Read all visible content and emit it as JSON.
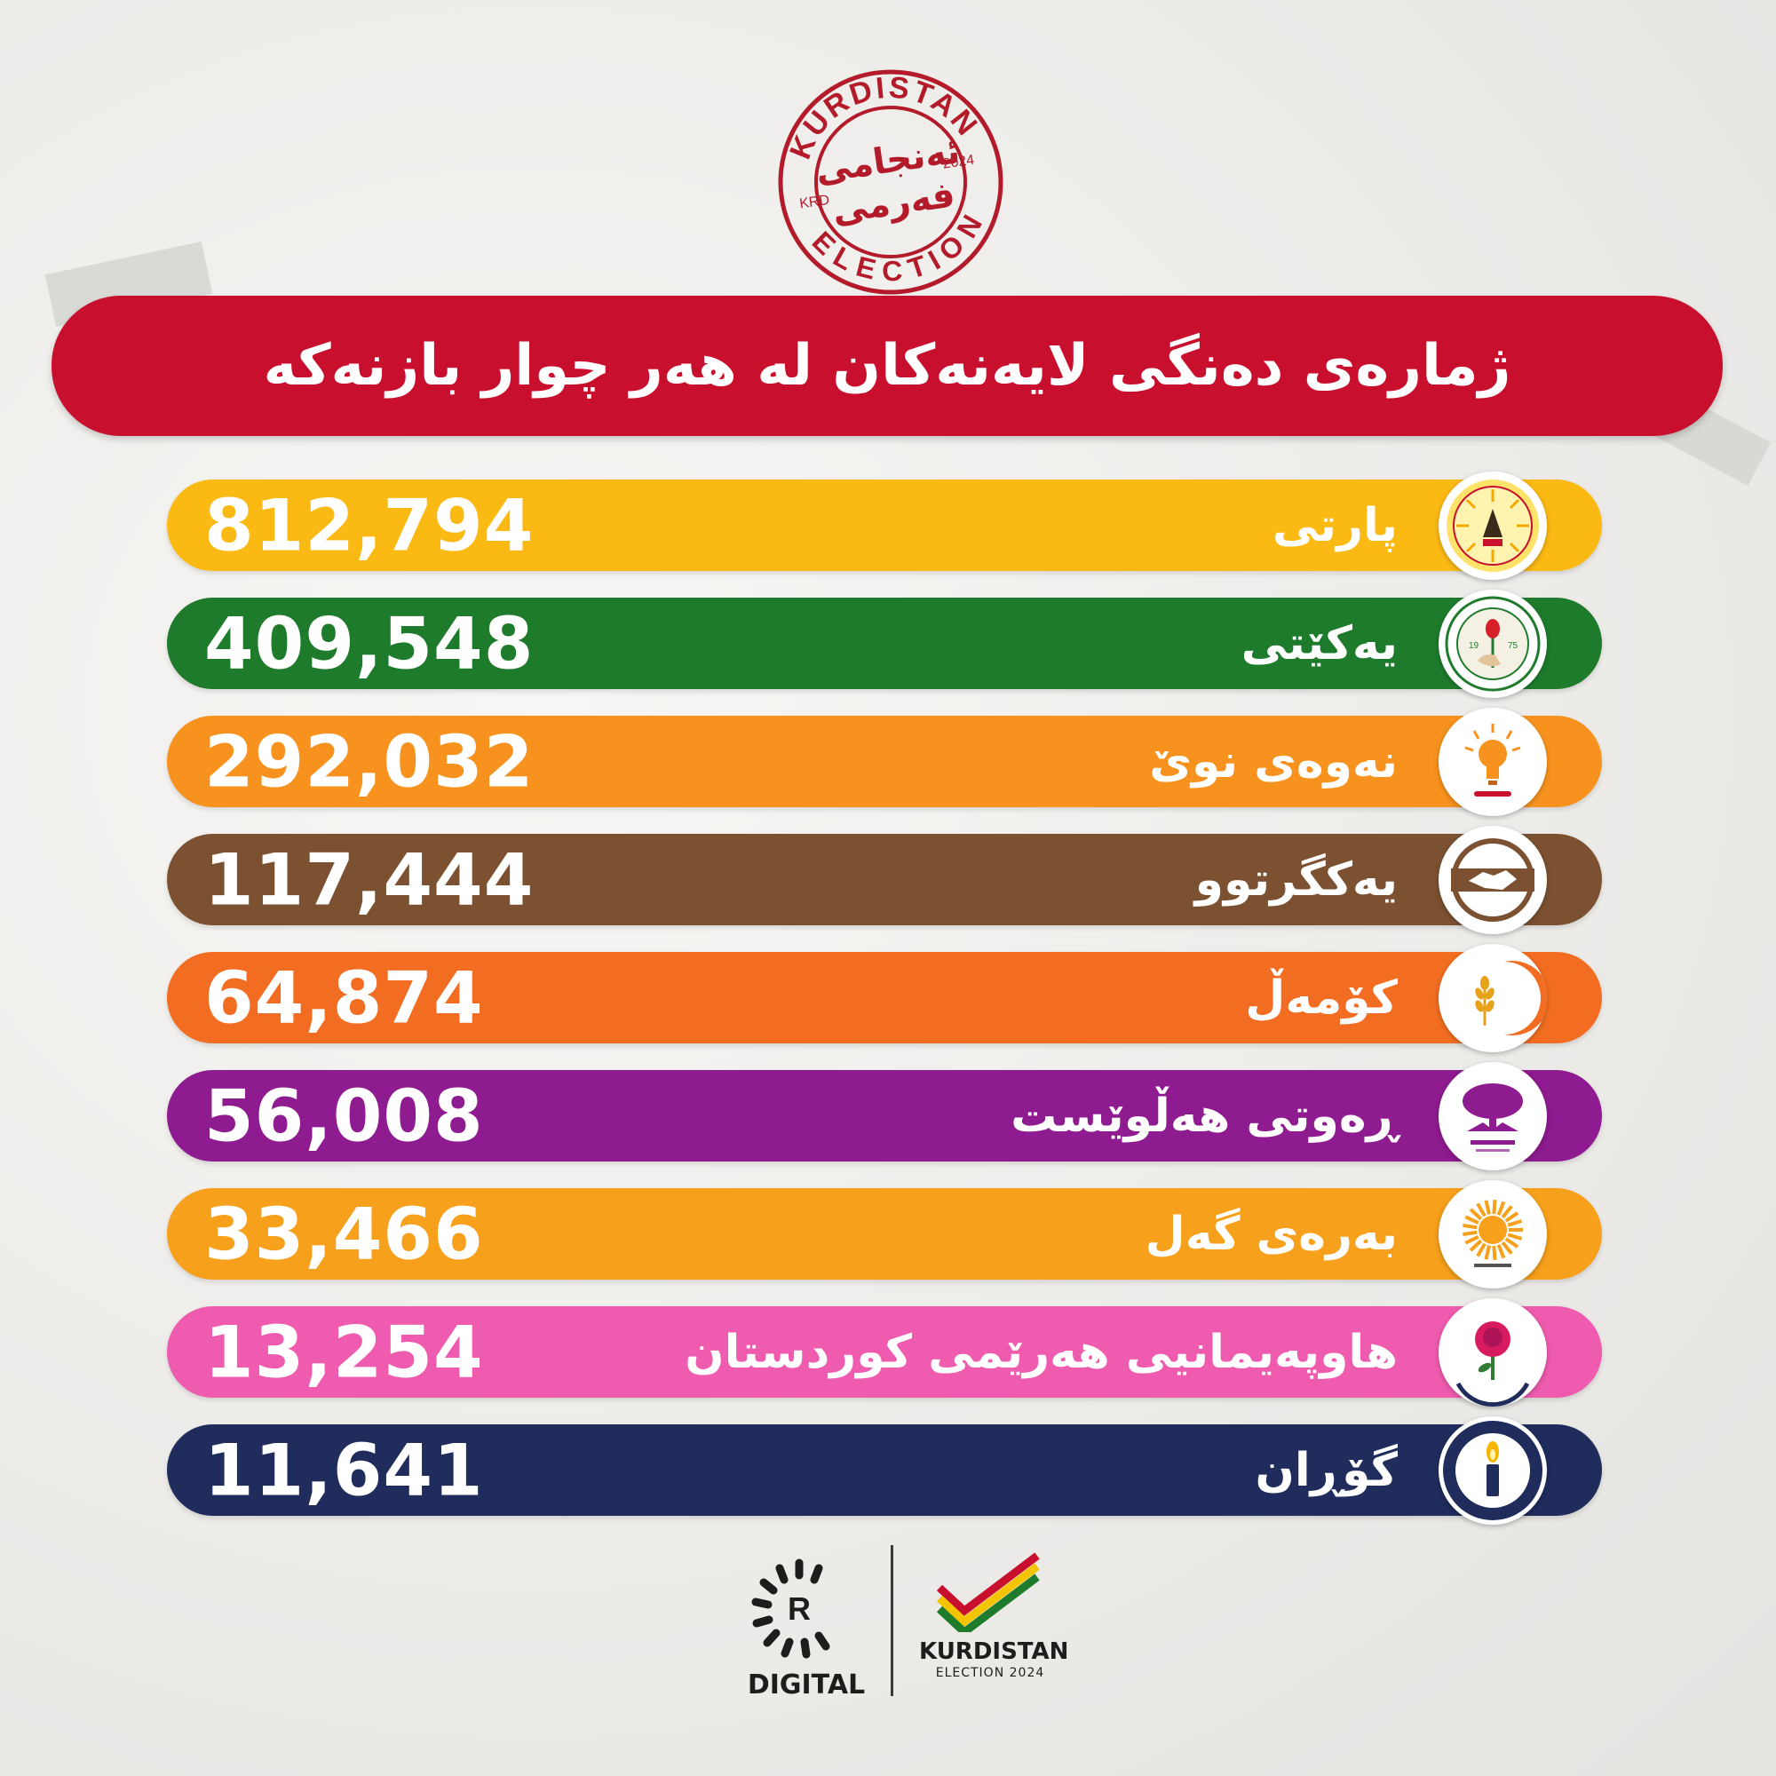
{
  "stamp": {
    "top_text": "KURDISTAN",
    "bottom_text": "ELECTION",
    "left_text": "KRD",
    "right_text": "2024",
    "center_line1": "ئەنجامی",
    "center_line2": "فەرمی",
    "color": "#b31b2a"
  },
  "banner": {
    "title": "ژمارەی دەنگی لایەنەکان لە هەر چوار بازنەکە",
    "color": "#c8102e"
  },
  "parties": [
    {
      "name": "پارتی",
      "votes": "812,794",
      "color": "#fbb914",
      "icon": "kdp-eagle-sun-icon"
    },
    {
      "name": "یەکێتی",
      "votes": "409,548",
      "color": "#1e7b2c",
      "icon": "puk-rose-hand-icon"
    },
    {
      "name": "نەوەی نوێ",
      "votes": "292,032",
      "color": "#f7921e",
      "icon": "new-generation-lightbulb-icon"
    },
    {
      "name": "یەکگرتوو",
      "votes": "117,444",
      "color": "#7b5131",
      "icon": "handshake-icon"
    },
    {
      "name": "کۆمەڵ",
      "votes": "64,874",
      "color": "#f26d21",
      "icon": "wheat-crescent-icon"
    },
    {
      "name": "ڕەوتی هەڵوێست",
      "votes": "56,008",
      "color": "#8e1b8f",
      "icon": "tree-icon"
    },
    {
      "name": "بەرەی گەل",
      "votes": "33,466",
      "color": "#f6a01b",
      "icon": "sun-icon"
    },
    {
      "name": "هاوپەیمانیی هەرێمی کوردستان",
      "votes": "13,254",
      "color": "#ef5bae",
      "icon": "rose-icon"
    },
    {
      "name": "گۆڕان",
      "votes": "11,641",
      "color": "#1f2c5c",
      "icon": "candle-icon"
    }
  ],
  "footer": {
    "rudaw_letter": "R",
    "rudaw_label": "DIGITAL",
    "election_label": "KURDISTAN",
    "election_sub": "ELECTION 2024"
  }
}
